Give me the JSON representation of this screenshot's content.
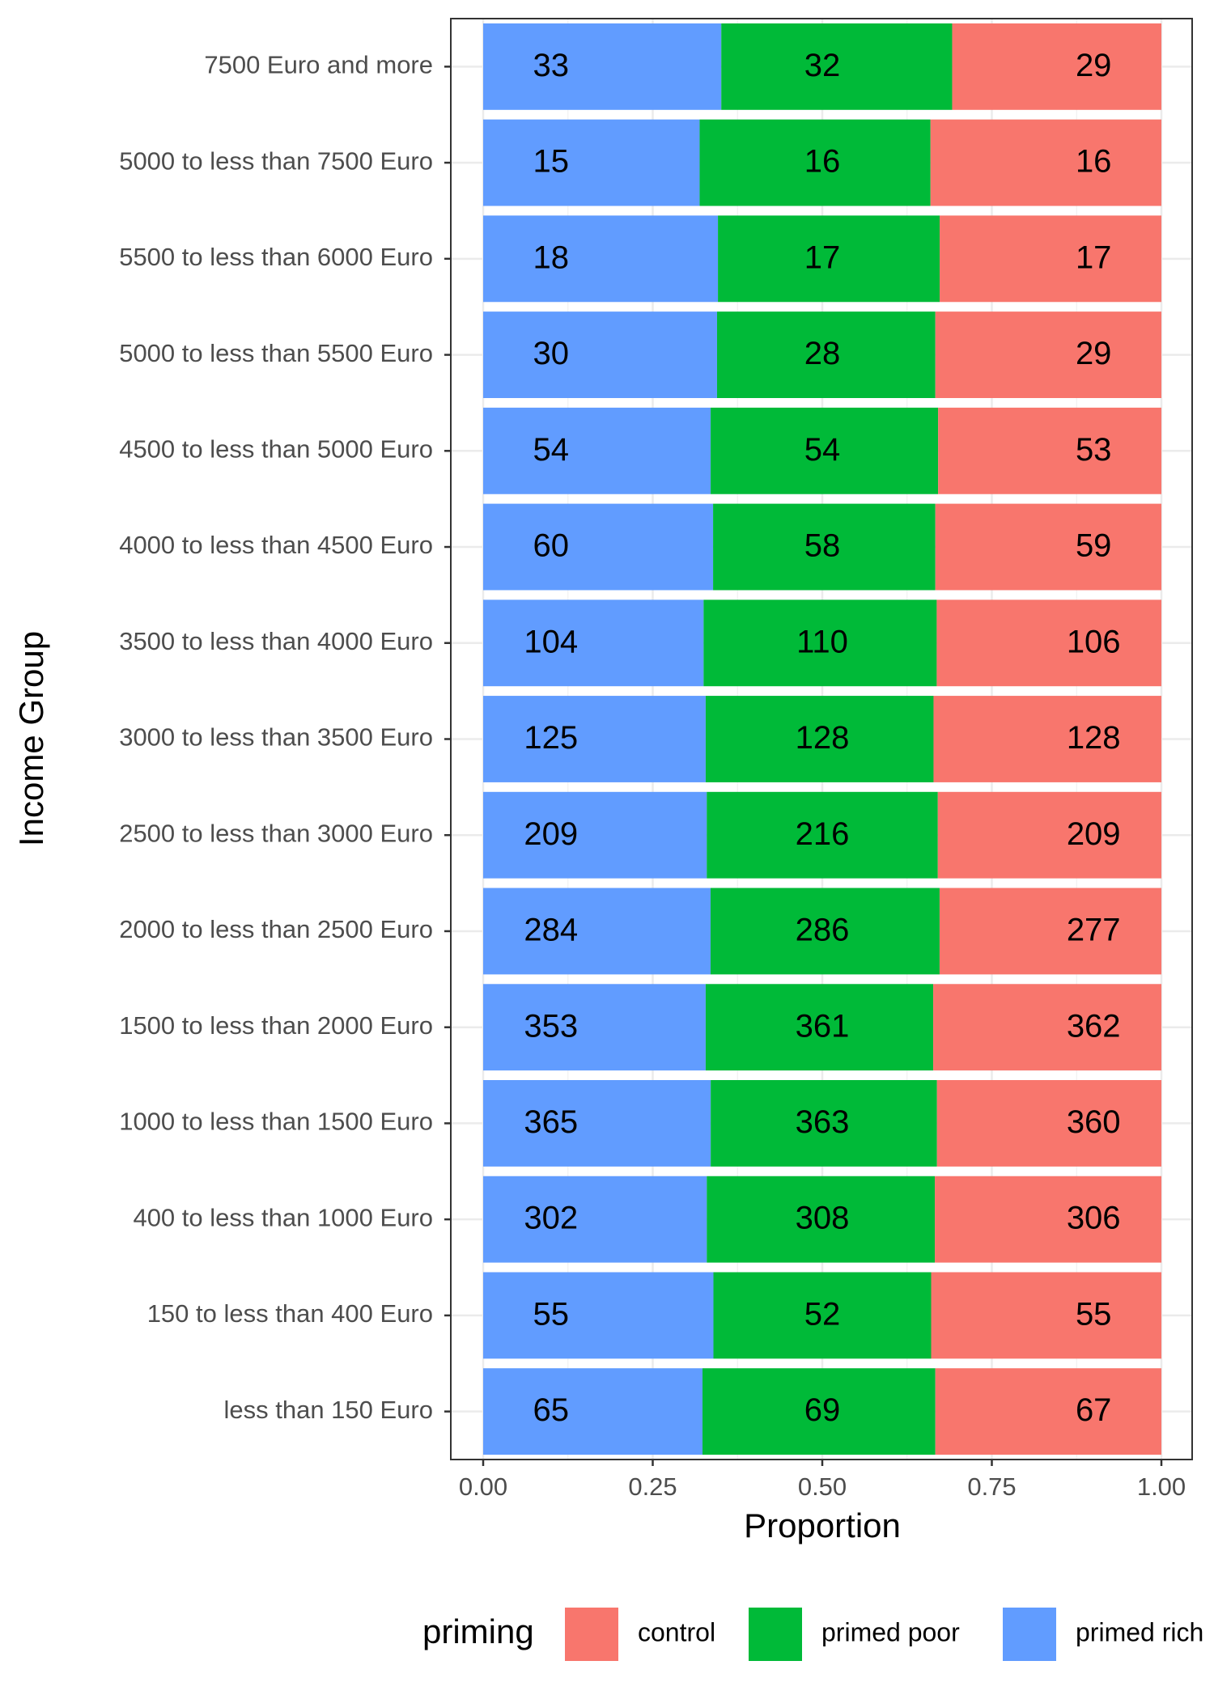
{
  "chart_data": {
    "type": "bar",
    "orientation": "horizontal",
    "position": "fill",
    "x_label": "Proportion",
    "y_label": "Income Group",
    "legend_title": "priming",
    "legend_position": "bottom",
    "categories": [
      "7500 Euro and more",
      "5000 to less than 7500 Euro",
      "5500 to less than 6000 Euro",
      "5000 to less than 5500 Euro",
      "4500 to less than 5000 Euro",
      "4000 to less than 4500 Euro",
      "3500 to less than 4000 Euro",
      "3000 to less than 3500 Euro",
      "2500 to less than 3000 Euro",
      "2000 to less than 2500 Euro",
      "1500 to less than 2000 Euro",
      "1000 to less than 1500 Euro",
      "400 to less than 1000 Euro",
      "150 to less than 400 Euro",
      "less than 150 Euro"
    ],
    "series": [
      {
        "name": "control",
        "color": "#f8766d",
        "values": [
          29,
          16,
          17,
          29,
          53,
          59,
          106,
          128,
          209,
          277,
          362,
          360,
          306,
          55,
          67
        ]
      },
      {
        "name": "primed poor",
        "color": "#00ba38",
        "values": [
          32,
          16,
          17,
          28,
          54,
          58,
          110,
          128,
          216,
          286,
          361,
          363,
          308,
          52,
          69
        ]
      },
      {
        "name": "primed rich",
        "color": "#619cff",
        "values": [
          33,
          15,
          18,
          30,
          54,
          60,
          104,
          125,
          209,
          284,
          353,
          365,
          302,
          55,
          65
        ]
      }
    ],
    "xlim": [
      0,
      1
    ],
    "xticks": [
      {
        "value": 0,
        "label": "0.00"
      },
      {
        "value": 0.25,
        "label": "0.25"
      },
      {
        "value": 0.5,
        "label": "0.50"
      },
      {
        "value": 0.75,
        "label": "0.75"
      },
      {
        "value": 1,
        "label": "1.00"
      }
    ],
    "grid": true
  }
}
